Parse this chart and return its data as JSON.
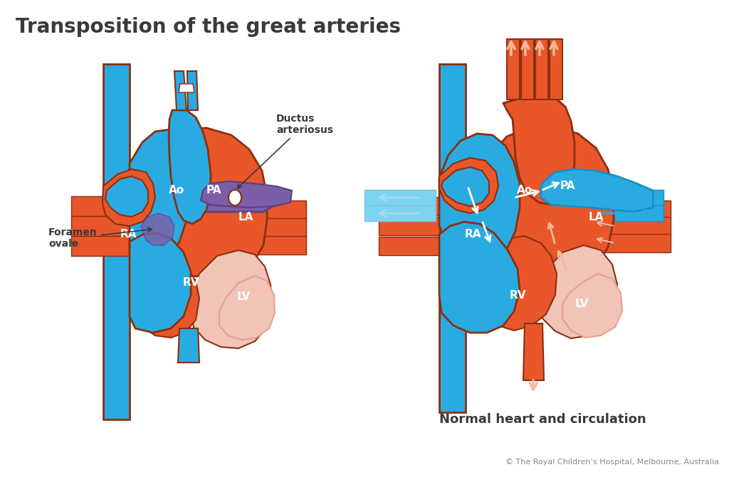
{
  "title": "Transposition of the great arteries",
  "subtitle_right": "Normal heart and circulation",
  "copyright": "© The Royal Children’s Hospital, Melbourne, Australia",
  "bg_color": "#ffffff",
  "title_color": "#3a3a3a",
  "title_fontsize": 20,
  "blue": "#29abe2",
  "blue_light": "#7dd4f0",
  "blue_arrow": "#a8d8ea",
  "orange": "#e8562a",
  "orange_light": "#f0a080",
  "orange_arrow": "#f5b89a",
  "pink": "#f2c4b8",
  "pink_dark": "#e8a090",
  "purple": "#7b5ea7",
  "purple_light": "#9b7ec7",
  "dark_outline": "#8b3010",
  "white": "#ffffff",
  "label_fontsize": 11,
  "annot_fontsize": 10,
  "copy_fontsize": 8
}
